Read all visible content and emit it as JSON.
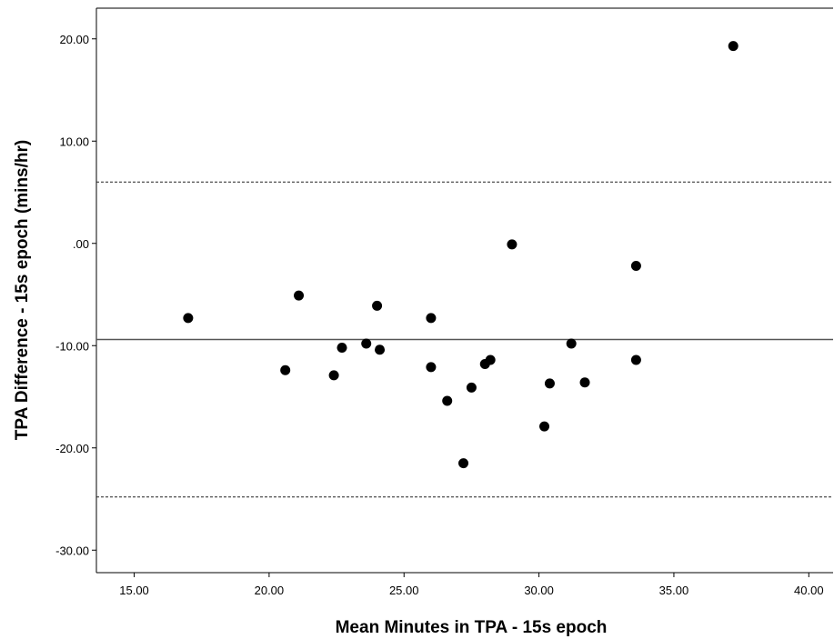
{
  "chart_data": {
    "type": "scatter",
    "title": "",
    "xlabel": "Mean Minutes in TPA - 15s epoch",
    "ylabel": "TPA Difference - 15s epoch (mins/hr)",
    "xlim": [
      13.6,
      40.9
    ],
    "ylim": [
      -32.2,
      23.0
    ],
    "x_ticks": [
      15,
      20,
      25,
      30,
      35,
      40
    ],
    "x_tick_labels": [
      "15.00",
      "20.00",
      "25.00",
      "30.00",
      "35.00",
      "40.00"
    ],
    "y_ticks": [
      20,
      10,
      0,
      -10,
      -20,
      -30
    ],
    "y_tick_labels": [
      "20.00",
      "10.00",
      ".00",
      "-10.00",
      "-20.00",
      "-30.00"
    ],
    "grid": false,
    "legend": "none",
    "reference_lines": [
      {
        "kind": "mean-difference",
        "y": -9.4,
        "style": "solid"
      },
      {
        "kind": "upper-limit-of-agreement",
        "y": 6.0,
        "style": "dashed"
      },
      {
        "kind": "lower-limit-of-agreement",
        "y": -24.8,
        "style": "dashed"
      }
    ],
    "marker_color": "#000000",
    "points": [
      {
        "x": 17.0,
        "y": -7.3
      },
      {
        "x": 20.6,
        "y": -12.4
      },
      {
        "x": 21.1,
        "y": -5.1
      },
      {
        "x": 22.4,
        "y": -12.9
      },
      {
        "x": 22.7,
        "y": -10.2
      },
      {
        "x": 23.6,
        "y": -9.8
      },
      {
        "x": 24.0,
        "y": -6.1
      },
      {
        "x": 24.1,
        "y": -10.4
      },
      {
        "x": 26.0,
        "y": -7.3
      },
      {
        "x": 26.0,
        "y": -12.1
      },
      {
        "x": 26.6,
        "y": -15.4
      },
      {
        "x": 27.2,
        "y": -21.5
      },
      {
        "x": 27.5,
        "y": -14.1
      },
      {
        "x": 28.0,
        "y": -11.8
      },
      {
        "x": 28.2,
        "y": -11.4
      },
      {
        "x": 29.0,
        "y": -0.1
      },
      {
        "x": 30.2,
        "y": -17.9
      },
      {
        "x": 30.4,
        "y": -13.7
      },
      {
        "x": 31.2,
        "y": -9.8
      },
      {
        "x": 31.7,
        "y": -13.6
      },
      {
        "x": 33.6,
        "y": -2.2
      },
      {
        "x": 33.6,
        "y": -11.4
      },
      {
        "x": 37.2,
        "y": 19.3
      }
    ]
  }
}
